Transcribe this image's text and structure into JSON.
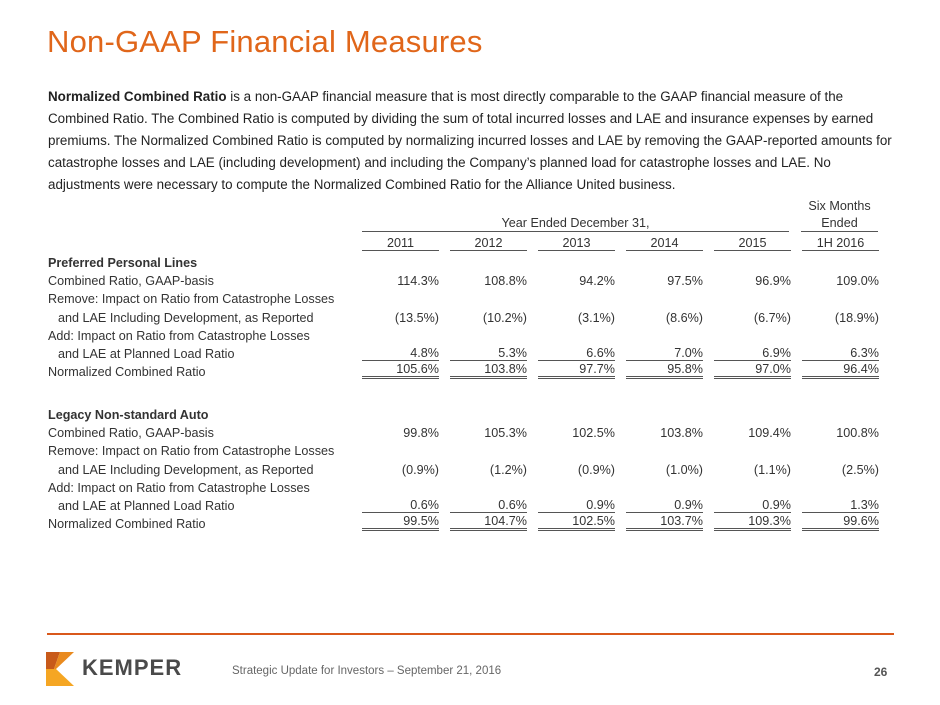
{
  "title": "Non-GAAP Financial Measures",
  "intro": {
    "bold": "Normalized Combined Ratio",
    "text": " is a non-GAAP financial measure that is most directly comparable to the GAAP financial measure of the Combined Ratio. The Combined Ratio is computed by dividing the sum of total incurred losses and LAE and insurance expenses by earned premiums. The Normalized Combined Ratio is computed by normalizing incurred losses and LAE by removing the GAAP-reported amounts for catastrophe losses and LAE (including development) and including the Company’s planned load for catastrophe losses and LAE. No adjustments were necessary to compute the Normalized Combined Ratio for the Alliance United business."
  },
  "table": {
    "group_header": "Year Ended December 31,",
    "six_months_line1": "Six Months",
    "six_months_line2": "Ended",
    "columns": [
      "2011",
      "2012",
      "2013",
      "2014",
      "2015",
      "1H 2016"
    ],
    "sections": [
      {
        "name": "Preferred Personal Lines",
        "combined_label": "Combined Ratio, GAAP-basis",
        "combined": [
          "114.3%",
          "108.8%",
          "94.2%",
          "97.5%",
          "96.9%",
          "109.0%"
        ],
        "remove_label1": "Remove: Impact on Ratio from Catastrophe Losses",
        "remove_label2": "and LAE Including Development, as Reported",
        "remove": [
          "(13.5%)",
          "(10.2%)",
          "(3.1%)",
          "(8.6%)",
          "(6.7%)",
          "(18.9%)"
        ],
        "add_label1": "Add: Impact on Ratio from Catastrophe Losses",
        "add_label2": "and LAE at Planned Load Ratio",
        "add": [
          "4.8%",
          "5.3%",
          "6.6%",
          "7.0%",
          "6.9%",
          "6.3%"
        ],
        "normalized_label": "Normalized Combined Ratio",
        "normalized": [
          "105.6%",
          "103.8%",
          "97.7%",
          "95.8%",
          "97.0%",
          "96.4%"
        ]
      },
      {
        "name": "Legacy Non-standard Auto",
        "combined_label": "Combined Ratio, GAAP-basis",
        "combined": [
          "99.8%",
          "105.3%",
          "102.5%",
          "103.8%",
          "109.4%",
          "100.8%"
        ],
        "remove_label1": "Remove: Impact on Ratio from Catastrophe Losses",
        "remove_label2": "and LAE Including Development, as Reported",
        "remove": [
          "(0.9%)",
          "(1.2%)",
          "(0.9%)",
          "(1.0%)",
          "(1.1%)",
          "(2.5%)"
        ],
        "add_label1": "Add: Impact on Ratio from Catastrophe Losses",
        "add_label2": "and LAE at Planned Load Ratio",
        "add": [
          "0.6%",
          "0.6%",
          "0.9%",
          "0.9%",
          "0.9%",
          "1.3%"
        ],
        "normalized_label": "Normalized Combined Ratio",
        "normalized": [
          "99.5%",
          "104.7%",
          "102.5%",
          "103.7%",
          "109.3%",
          "99.6%"
        ]
      }
    ]
  },
  "footer": {
    "logo_text": "KEMPER",
    "caption": "Strategic Update for Investors – September 21, 2016",
    "page_number": "26",
    "accent": "#d9581b",
    "title_color": "#e0661a"
  }
}
